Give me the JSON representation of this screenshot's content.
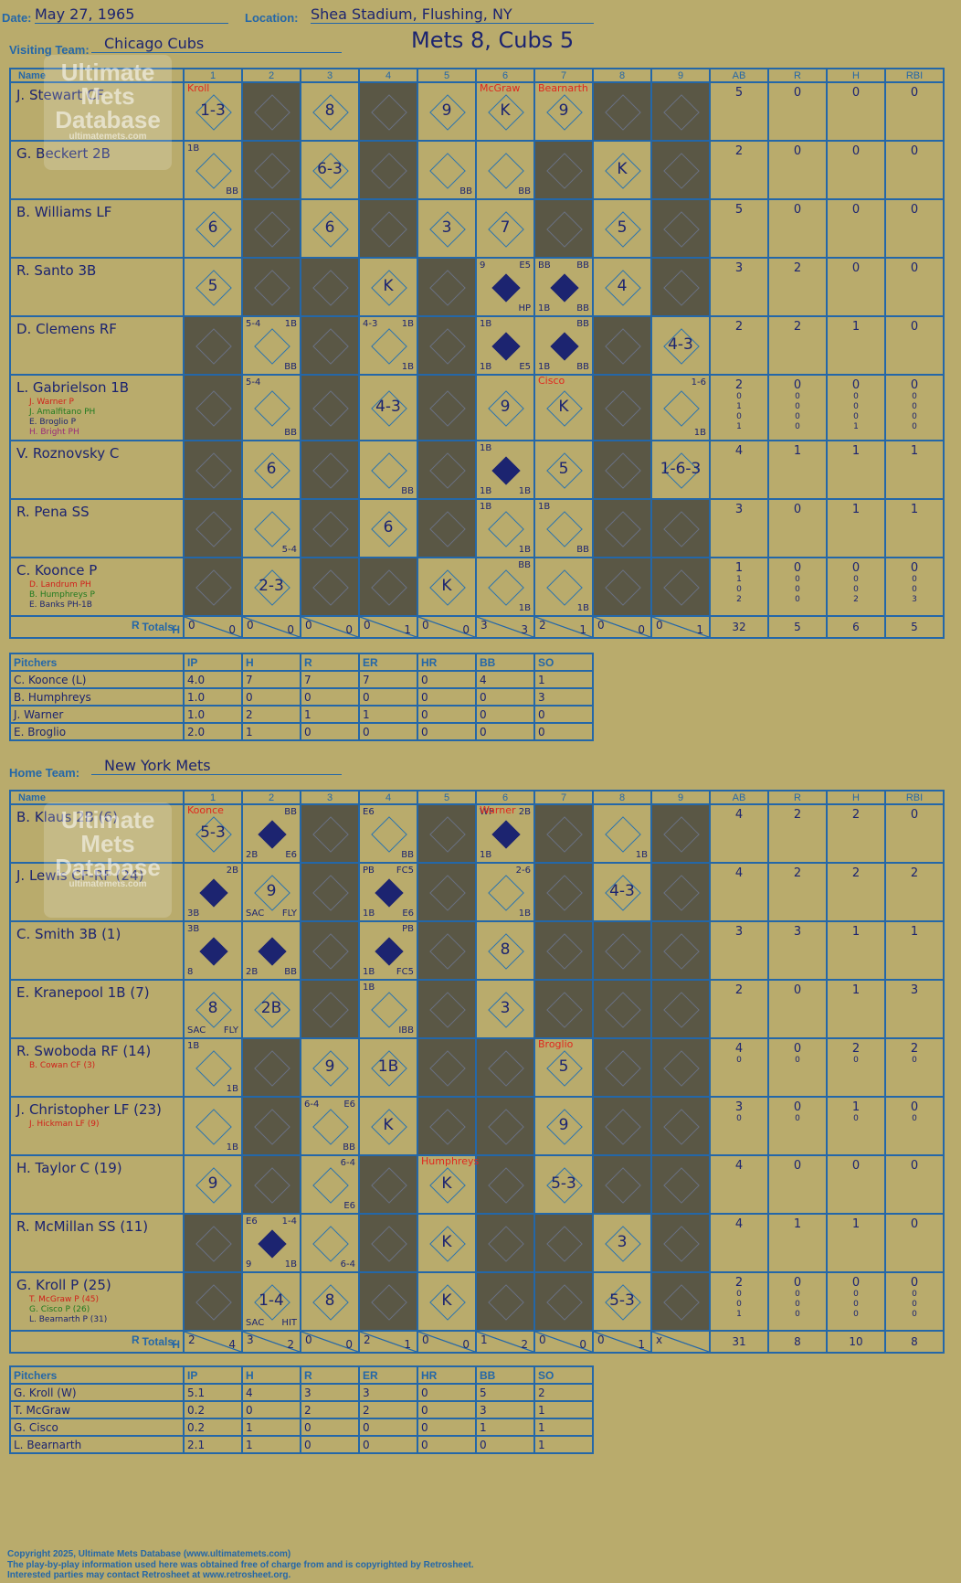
{
  "game": {
    "date_label": "Date:",
    "date": "May 27, 1965",
    "location_label": "Location:",
    "location": "Shea Stadium, Flushing, NY",
    "title": "Mets 8, Cubs 5",
    "visiting_label": "Visiting Team:",
    "visiting_team": "Chicago Cubs",
    "home_label": "Home Team:",
    "home_team": "New York Mets"
  },
  "watermark": {
    "line1": "Ultimate",
    "line2": "Mets",
    "line3": "Database",
    "url": "ultimatemets.com"
  },
  "headers": {
    "name": "Name",
    "innings": [
      "1",
      "2",
      "3",
      "4",
      "5",
      "6",
      "7",
      "8",
      "9"
    ],
    "stats": [
      "AB",
      "R",
      "H",
      "RBI"
    ],
    "totals": "Totals:",
    "rh_r": "R",
    "rh_h": "H"
  },
  "pitch_headers": [
    "Pitchers",
    "IP",
    "H",
    "R",
    "ER",
    "HR",
    "BB",
    "SO"
  ],
  "visitors": [
    {
      "name": "J. Stewart CF",
      "subs": [],
      "stats": [
        [
          "5"
        ],
        [
          "0"
        ],
        [
          "0"
        ],
        [
          "0"
        ]
      ],
      "cells": [
        {
          "t": "1-3",
          "red": "Kroll"
        },
        {
          "dark": true
        },
        {
          "t": "8"
        },
        {
          "dark": true
        },
        {
          "t": "9"
        },
        {
          "t": "K",
          "red": "McGraw"
        },
        {
          "t": "9",
          "red": "Bearnarth"
        },
        {
          "dark": true
        },
        {
          "dark": true
        }
      ]
    },
    {
      "name": "G. Beckert 2B",
      "subs": [],
      "stats": [
        [
          "2"
        ],
        [
          "0"
        ],
        [
          "0"
        ],
        [
          "0"
        ]
      ],
      "cells": [
        {
          "tl": "1B",
          "br": "BB"
        },
        {
          "dark": true
        },
        {
          "t": "6-3"
        },
        {
          "dark": true
        },
        {
          "br": "BB"
        },
        {
          "br": "BB"
        },
        {
          "dark": true
        },
        {
          "t": "K"
        },
        {
          "dark": true
        }
      ]
    },
    {
      "name": "B. Williams LF",
      "subs": [],
      "stats": [
        [
          "5"
        ],
        [
          "0"
        ],
        [
          "0"
        ],
        [
          "0"
        ]
      ],
      "cells": [
        {
          "t": "6"
        },
        {
          "dark": true
        },
        {
          "t": "6"
        },
        {
          "dark": true
        },
        {
          "t": "3"
        },
        {
          "t": "7"
        },
        {
          "dark": true
        },
        {
          "t": "5"
        },
        {
          "dark": true
        }
      ]
    },
    {
      "name": "R. Santo 3B",
      "subs": [],
      "stats": [
        [
          "3"
        ],
        [
          "2"
        ],
        [
          "0"
        ],
        [
          "0"
        ]
      ],
      "cells": [
        {
          "t": "5"
        },
        {
          "dark": true
        },
        {
          "dark": true
        },
        {
          "t": "K"
        },
        {
          "dark": true
        },
        {
          "tl": "9",
          "tr": "E5",
          "br": "HP",
          "run": true
        },
        {
          "tl": "BB",
          "tr": "BB",
          "bl": "1B",
          "br": "BB",
          "run": true
        },
        {
          "t": "4"
        },
        {
          "dark": true
        }
      ]
    },
    {
      "name": "D. Clemens RF",
      "subs": [],
      "stats": [
        [
          "2"
        ],
        [
          "2"
        ],
        [
          "1"
        ],
        [
          "0"
        ]
      ],
      "cells": [
        {
          "dark": true
        },
        {
          "tl": "5-4",
          "tr": "1B",
          "br": "BB"
        },
        {
          "dark": true
        },
        {
          "tl": "4-3",
          "tr": "1B",
          "br": "1B"
        },
        {
          "dark": true
        },
        {
          "tl": "1B",
          "bl": "1B",
          "br": "E5",
          "run": true
        },
        {
          "tr": "BB",
          "bl": "1B",
          "br": "BB",
          "run": true
        },
        {
          "dark": true
        },
        {
          "t": "4-3"
        }
      ]
    },
    {
      "name": "L. Gabrielson 1B",
      "subs": [
        "J. Warner P",
        "J. Amalfitano PH",
        "E. Broglio P",
        "H. Bright PH"
      ],
      "stats": [
        [
          "2",
          "0",
          "1",
          "0",
          "1"
        ],
        [
          "0",
          "0",
          "0",
          "0",
          "0"
        ],
        [
          "0",
          "0",
          "0",
          "0",
          "1"
        ],
        [
          "0",
          "0",
          "0",
          "0",
          "0"
        ]
      ],
      "cells": [
        {
          "dark": true
        },
        {
          "tl": "5-4",
          "br": "BB"
        },
        {
          "dark": true
        },
        {
          "t": "4-3"
        },
        {
          "dark": true
        },
        {
          "t": "9"
        },
        {
          "t": "K",
          "red": "Cisco"
        },
        {
          "dark": true
        },
        {
          "tr": "1-6",
          "br": "1B"
        }
      ]
    },
    {
      "name": "V. Roznovsky C",
      "subs": [],
      "stats": [
        [
          "4"
        ],
        [
          "1"
        ],
        [
          "1"
        ],
        [
          "1"
        ]
      ],
      "cells": [
        {
          "dark": true
        },
        {
          "t": "6"
        },
        {
          "dark": true
        },
        {
          "br": "BB"
        },
        {
          "dark": true
        },
        {
          "tl": "1B",
          "bl": "1B",
          "br": "1B",
          "run": true
        },
        {
          "t": "5"
        },
        {
          "dark": true
        },
        {
          "t": "1-6-3"
        }
      ]
    },
    {
      "name": "R. Pena SS",
      "subs": [],
      "stats": [
        [
          "3"
        ],
        [
          "0"
        ],
        [
          "1"
        ],
        [
          "1"
        ]
      ],
      "cells": [
        {
          "dark": true
        },
        {
          "br": "5-4"
        },
        {
          "dark": true
        },
        {
          "t": "6"
        },
        {
          "dark": true
        },
        {
          "tl": "1B",
          "br": "1B"
        },
        {
          "tl": "1B",
          "br": "BB"
        },
        {
          "dark": true
        },
        {
          "dark": true
        }
      ]
    },
    {
      "name": "C. Koonce P",
      "subs": [
        "D. Landrum PH",
        "B. Humphreys P",
        "E. Banks PH-1B"
      ],
      "stats": [
        [
          "1",
          "1",
          "0",
          "2"
        ],
        [
          "0",
          "0",
          "0",
          "0"
        ],
        [
          "0",
          "0",
          "0",
          "2"
        ],
        [
          "0",
          "0",
          "0",
          "3"
        ]
      ],
      "cells": [
        {
          "dark": true
        },
        {
          "t": "2-3"
        },
        {
          "dark": true
        },
        {
          "dark": true
        },
        {
          "t": "K"
        },
        {
          "tr": "BB",
          "br": "1B"
        },
        {
          "br": "1B"
        },
        {
          "dark": true
        },
        {
          "dark": true
        }
      ]
    }
  ],
  "visitors_totals": {
    "innings": [
      [
        "0",
        "0"
      ],
      [
        "0",
        "0"
      ],
      [
        "0",
        "0"
      ],
      [
        "0",
        "1"
      ],
      [
        "0",
        "0"
      ],
      [
        "3",
        "3"
      ],
      [
        "2",
        "1"
      ],
      [
        "0",
        "0"
      ],
      [
        "0",
        "1"
      ]
    ],
    "stats": [
      "32",
      "5",
      "6",
      "5"
    ]
  },
  "visitors_pitchers": [
    [
      "C. Koonce (L)",
      "4.0",
      "7",
      "7",
      "7",
      "0",
      "4",
      "1"
    ],
    [
      "B. Humphreys",
      "1.0",
      "0",
      "0",
      "0",
      "0",
      "0",
      "3"
    ],
    [
      "J. Warner",
      "1.0",
      "2",
      "1",
      "1",
      "0",
      "0",
      "0"
    ],
    [
      "E. Broglio",
      "2.0",
      "1",
      "0",
      "0",
      "0",
      "0",
      "0"
    ]
  ],
  "home": [
    {
      "name": "B. Klaus 2B (6)",
      "subs": [],
      "stats": [
        [
          "4"
        ],
        [
          "2"
        ],
        [
          "2"
        ],
        [
          "0"
        ]
      ],
      "cells": [
        {
          "t": "5-3",
          "red": "Koonce"
        },
        {
          "tr": "BB",
          "bl": "2B",
          "br": "E6",
          "run": true
        },
        {
          "dark": true
        },
        {
          "tl": "E6",
          "br": "BB"
        },
        {
          "dark": true
        },
        {
          "tl": "WP",
          "tr": "2B",
          "bl": "1B",
          "run": true,
          "red": "Warner"
        },
        {
          "dark": true
        },
        {
          "br": "1B"
        },
        {
          "dark": true
        }
      ]
    },
    {
      "name": "J. Lewis CF-RF (24)",
      "subs": [],
      "stats": [
        [
          "4"
        ],
        [
          "2"
        ],
        [
          "2"
        ],
        [
          "2"
        ]
      ],
      "cells": [
        {
          "tr": "2B",
          "bl": "3B",
          "run": true
        },
        {
          "t": "9",
          "bl": "SAC",
          "br": "FLY"
        },
        {
          "dark": true
        },
        {
          "tl": "PB",
          "tr": "FC5",
          "bl": "1B",
          "br": "E6",
          "run": true
        },
        {
          "dark": true
        },
        {
          "tr": "2-6",
          "br": "1B"
        },
        {
          "dark": true
        },
        {
          "t": "4-3"
        },
        {
          "dark": true
        }
      ]
    },
    {
      "name": "C. Smith 3B (1)",
      "subs": [],
      "stats": [
        [
          "3"
        ],
        [
          "3"
        ],
        [
          "1"
        ],
        [
          "1"
        ]
      ],
      "cells": [
        {
          "tl": "3B",
          "bl": "8",
          "run": true
        },
        {
          "bl": "2B",
          "br": "BB",
          "run": true
        },
        {
          "dark": true
        },
        {
          "tr": "PB",
          "bl": "1B",
          "br": "FC5",
          "run": true
        },
        {
          "dark": true
        },
        {
          "t": "8"
        },
        {
          "dark": true
        },
        {
          "dark": true
        },
        {
          "dark": true
        }
      ]
    },
    {
      "name": "E. Kranepool 1B (7)",
      "subs": [],
      "stats": [
        [
          "2"
        ],
        [
          "0"
        ],
        [
          "1"
        ],
        [
          "3"
        ]
      ],
      "cells": [
        {
          "t": "8",
          "bl": "SAC",
          "br": "FLY"
        },
        {
          "t": "2B"
        },
        {
          "dark": true
        },
        {
          "tl": "1B",
          "br": "IBB"
        },
        {
          "dark": true
        },
        {
          "t": "3"
        },
        {
          "dark": true
        },
        {
          "dark": true
        },
        {
          "dark": true
        }
      ]
    },
    {
      "name": "R. Swoboda RF (14)",
      "subs": [
        "B. Cowan CF (3)"
      ],
      "stats": [
        [
          "4",
          "0"
        ],
        [
          "0",
          "0"
        ],
        [
          "2",
          "0"
        ],
        [
          "2",
          "0"
        ]
      ],
      "cells": [
        {
          "tl": "1B",
          "br": "1B"
        },
        {
          "dark": true
        },
        {
          "t": "9"
        },
        {
          "t": "1B"
        },
        {
          "dark": true
        },
        {
          "dark": true
        },
        {
          "t": "5",
          "red": "Broglio"
        },
        {
          "dark": true
        },
        {
          "dark": true
        }
      ]
    },
    {
      "name": "J. Christopher LF (23)",
      "subs": [
        "J. Hickman LF (9)"
      ],
      "stats": [
        [
          "3",
          "0"
        ],
        [
          "0",
          "0"
        ],
        [
          "1",
          "0"
        ],
        [
          "0",
          "0"
        ]
      ],
      "cells": [
        {
          "br": "1B"
        },
        {
          "dark": true
        },
        {
          "tl": "6-4",
          "tr": "E6",
          "br": "BB"
        },
        {
          "t": "K"
        },
        {
          "dark": true
        },
        {
          "dark": true
        },
        {
          "t": "9"
        },
        {
          "dark": true
        },
        {
          "dark": true
        }
      ]
    },
    {
      "name": "H. Taylor C (19)",
      "subs": [],
      "stats": [
        [
          "4"
        ],
        [
          "0"
        ],
        [
          "0"
        ],
        [
          "0"
        ]
      ],
      "cells": [
        {
          "t": "9"
        },
        {
          "dark": true
        },
        {
          "tr": "6-4",
          "br": "E6"
        },
        {
          "dark": true
        },
        {
          "t": "K",
          "red": "Humphreys"
        },
        {
          "dark": true
        },
        {
          "t": "5-3"
        },
        {
          "dark": true
        },
        {
          "dark": true
        }
      ]
    },
    {
      "name": "R. McMillan SS (11)",
      "subs": [],
      "stats": [
        [
          "4"
        ],
        [
          "1"
        ],
        [
          "1"
        ],
        [
          "0"
        ]
      ],
      "cells": [
        {
          "dark": true
        },
        {
          "tl": "E6",
          "tr": "1-4",
          "bl": "9",
          "br": "1B",
          "run": true
        },
        {
          "br": "6-4"
        },
        {
          "dark": true
        },
        {
          "t": "K"
        },
        {
          "dark": true
        },
        {
          "dark": true
        },
        {
          "t": "3"
        },
        {
          "dark": true
        }
      ]
    },
    {
      "name": "G. Kroll P (25)",
      "subs": [
        "T. McGraw P (45)",
        "G. Cisco P (26)",
        "L. Bearnarth P (31)"
      ],
      "stats": [
        [
          "2",
          "0",
          "0",
          "1"
        ],
        [
          "0",
          "0",
          "0",
          "0"
        ],
        [
          "0",
          "0",
          "0",
          "0"
        ],
        [
          "0",
          "0",
          "0",
          "0"
        ]
      ],
      "cells": [
        {
          "dark": true
        },
        {
          "t": "1-4",
          "bl": "SAC",
          "br": "HIT"
        },
        {
          "t": "8"
        },
        {
          "dark": true
        },
        {
          "t": "K"
        },
        {
          "dark": true
        },
        {
          "dark": true
        },
        {
          "t": "5-3"
        },
        {
          "dark": true
        }
      ]
    }
  ],
  "home_totals": {
    "innings": [
      [
        "2",
        "4"
      ],
      [
        "3",
        "2"
      ],
      [
        "0",
        "0"
      ],
      [
        "2",
        "1"
      ],
      [
        "0",
        "0"
      ],
      [
        "1",
        "2"
      ],
      [
        "0",
        "0"
      ],
      [
        "0",
        "1"
      ],
      [
        "x",
        ""
      ]
    ],
    "stats": [
      "31",
      "8",
      "10",
      "8"
    ]
  },
  "home_pitchers": [
    [
      "G. Kroll (W)",
      "5.1",
      "4",
      "3",
      "3",
      "0",
      "5",
      "2"
    ],
    [
      "T. McGraw",
      "0.2",
      "0",
      "2",
      "2",
      "0",
      "3",
      "1"
    ],
    [
      "G. Cisco",
      "0.2",
      "1",
      "0",
      "0",
      "0",
      "1",
      "1"
    ],
    [
      "L. Bearnarth",
      "2.1",
      "1",
      "0",
      "0",
      "0",
      "0",
      "1"
    ]
  ],
  "footer": {
    "line1": "Copyright 2025, Ultimate Mets Database (www.ultimatemets.com)",
    "line2": "The play-by-play information used here was obtained free of charge from and is copyrighted by Retrosheet.",
    "line3": "Interested parties may contact Retrosheet at www.retrosheet.org."
  },
  "colors": {
    "background": "#b9ab6c",
    "grid": "#2467a8",
    "ink": "#1c2470",
    "shade": "#5a5745",
    "pitcher_change": "#e0271e"
  }
}
